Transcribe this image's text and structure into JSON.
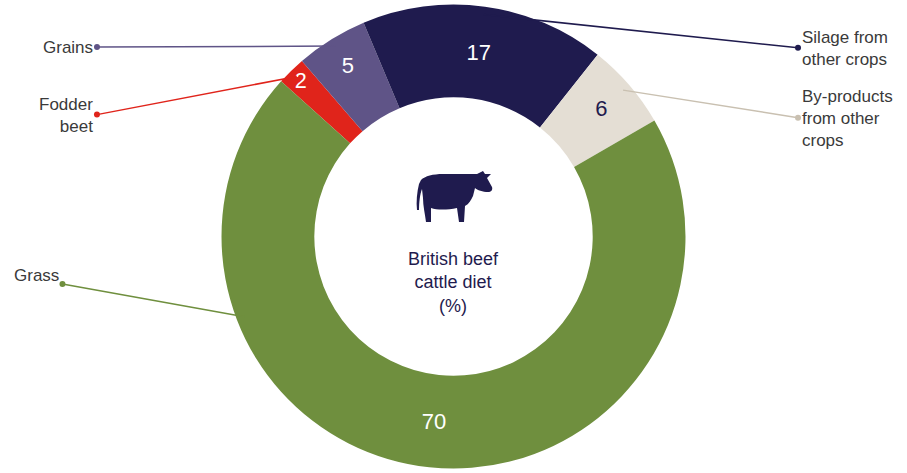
{
  "chart_data": {
    "type": "donut",
    "title": "British beef cattle diet (%)",
    "categories": [
      "Fodder beet",
      "Grains",
      "Silage from other crops",
      "By-products from other crops",
      "Grass"
    ],
    "values": [
      2,
      5,
      17,
      6,
      70
    ],
    "colors": [
      "#e0241b",
      "#5f5487",
      "#1f1b4e",
      "#e4ded4",
      "#6f8f3e"
    ],
    "data_labels": true
  }
}
